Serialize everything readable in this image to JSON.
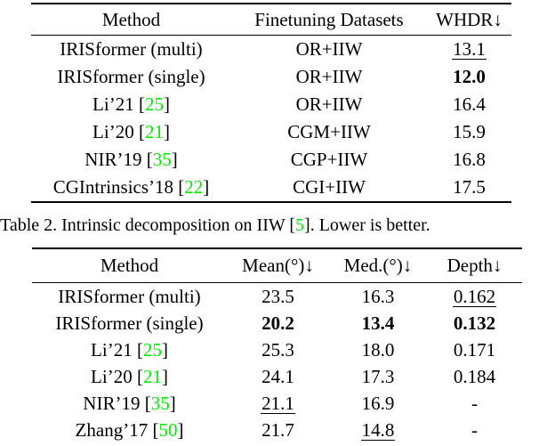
{
  "colors": {
    "citation_green": "#00EE00",
    "text_black": "#000000"
  },
  "caption": {
    "prefix": "Table 2. Intrinsic decomposition on IIW [",
    "cite": "5",
    "suffix": "]. Lower is better."
  },
  "tables": [
    {
      "name": "iiw-intrinsic-decomposition-table",
      "headers": [
        "Method",
        "Finetuning Datasets",
        "WHDR↓"
      ],
      "rows": [
        {
          "method": {
            "name": "IRISformer (multi)",
            "cite": null
          },
          "cells": [
            {
              "text": "OR+IIW",
              "style": "normal"
            },
            {
              "text": "13.1",
              "style": "underline"
            }
          ]
        },
        {
          "method": {
            "name": "IRISformer (single)",
            "cite": null
          },
          "cells": [
            {
              "text": "OR+IIW",
              "style": "normal"
            },
            {
              "text": "12.0",
              "style": "bold"
            }
          ]
        },
        {
          "method": {
            "name": "Li’21",
            "cite": "25"
          },
          "cells": [
            {
              "text": "OR+IIW",
              "style": "normal"
            },
            {
              "text": "16.4",
              "style": "normal"
            }
          ]
        },
        {
          "method": {
            "name": "Li’20",
            "cite": "21"
          },
          "cells": [
            {
              "text": "CGM+IIW",
              "style": "normal"
            },
            {
              "text": "15.9",
              "style": "normal"
            }
          ]
        },
        {
          "method": {
            "name": "NIR’19",
            "cite": "35"
          },
          "cells": [
            {
              "text": "CGP+IIW",
              "style": "normal"
            },
            {
              "text": "16.8",
              "style": "normal"
            }
          ]
        },
        {
          "method": {
            "name": "CGIntrinsics’18",
            "cite": "22"
          },
          "cells": [
            {
              "text": "CGI+IIW",
              "style": "normal"
            },
            {
              "text": "17.5",
              "style": "normal"
            }
          ]
        }
      ]
    },
    {
      "name": "normals-depth-table",
      "headers": [
        "Method",
        "Mean(°)↓",
        "Med.(°)↓",
        "Depth↓"
      ],
      "rows": [
        {
          "method": {
            "name": "IRISformer (multi)",
            "cite": null
          },
          "cells": [
            {
              "text": "23.5",
              "style": "normal"
            },
            {
              "text": "16.3",
              "style": "normal"
            },
            {
              "text": "0.162",
              "style": "underline"
            }
          ]
        },
        {
          "method": {
            "name": "IRISformer (single)",
            "cite": null
          },
          "cells": [
            {
              "text": "20.2",
              "style": "bold"
            },
            {
              "text": "13.4",
              "style": "bold"
            },
            {
              "text": "0.132",
              "style": "bold"
            }
          ]
        },
        {
          "method": {
            "name": "Li’21",
            "cite": "25"
          },
          "cells": [
            {
              "text": "25.3",
              "style": "normal"
            },
            {
              "text": "18.0",
              "style": "normal"
            },
            {
              "text": "0.171",
              "style": "normal"
            }
          ]
        },
        {
          "method": {
            "name": "Li’20",
            "cite": "21"
          },
          "cells": [
            {
              "text": "24.1",
              "style": "normal"
            },
            {
              "text": "17.3",
              "style": "normal"
            },
            {
              "text": "0.184",
              "style": "normal"
            }
          ]
        },
        {
          "method": {
            "name": "NIR’19",
            "cite": "35"
          },
          "cells": [
            {
              "text": "21.1",
              "style": "underline"
            },
            {
              "text": "16.9",
              "style": "normal"
            },
            {
              "text": "-",
              "style": "normal"
            }
          ]
        },
        {
          "method": {
            "name": "Zhang’17",
            "cite": "50"
          },
          "cells": [
            {
              "text": "21.7",
              "style": "normal"
            },
            {
              "text": "14.8",
              "style": "underline"
            },
            {
              "text": "-",
              "style": "normal"
            }
          ]
        }
      ]
    }
  ],
  "citation_brackets": {
    "open": " [",
    "close": "]"
  }
}
